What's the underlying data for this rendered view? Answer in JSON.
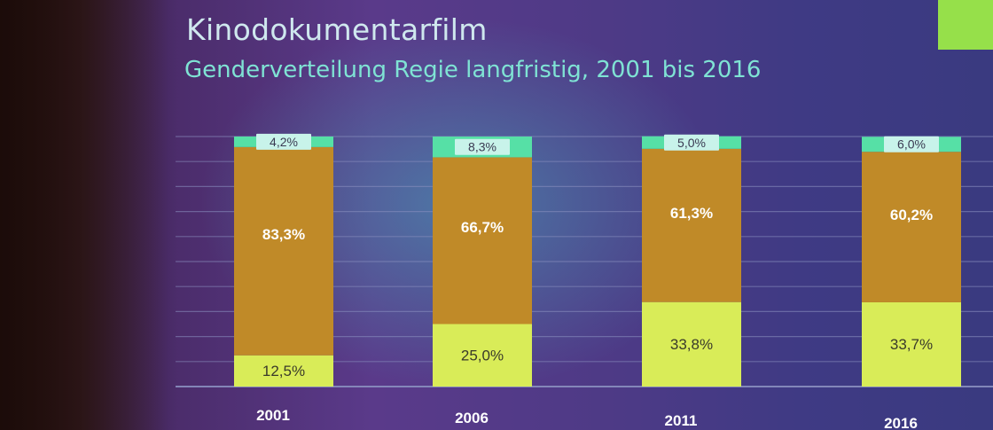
{
  "title": "Kinodokumentarfilm",
  "subtitle": "Genderverteilung Regie langfristig, 2001 bis 2016",
  "colors": {
    "bottom": "#d9ec58",
    "middle": "#c08a28",
    "top": "#56e0a6",
    "top_label_box": "#c8f3ea",
    "grid": "#8a8fbf",
    "corner_accent": "#96e04a"
  },
  "chart_data": {
    "type": "bar",
    "stacked": true,
    "categories": [
      "2001",
      "2006",
      "2011",
      "2016"
    ],
    "series": [
      {
        "values": [
          12.5,
          25.0,
          33.8,
          33.7
        ],
        "labels": [
          "12,5%",
          "25,0%",
          "33,8%",
          "33,7%"
        ]
      },
      {
        "values": [
          83.3,
          66.7,
          61.3,
          60.2
        ],
        "labels": [
          "83,3%",
          "66,7%",
          "61,3%",
          "60,2%"
        ]
      },
      {
        "values": [
          4.2,
          8.3,
          5.0,
          6.0
        ],
        "labels": [
          "4,2%",
          "8,3%",
          "5,0%",
          "6,0%"
        ]
      }
    ],
    "ylim": [
      0,
      100
    ],
    "grid": true,
    "legend": "none"
  }
}
